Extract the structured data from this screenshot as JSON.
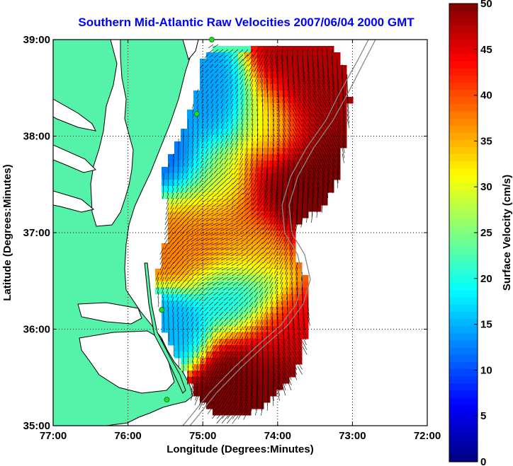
{
  "title": "Southern Mid-Atlantic Raw Velocities 2007/06/04 2000 GMT",
  "map": {
    "xlabel": "Longitude (Degrees:Minutes)",
    "ylabel": "Latitude (Degrees:Minutes)",
    "lon_range": [
      -77,
      -72
    ],
    "lat_range": [
      35,
      39
    ],
    "x_ticks": [
      "77:00",
      "76:00",
      "75:00",
      "74:00",
      "73:00",
      "72:00"
    ],
    "y_ticks": [
      "35:00",
      "36:00",
      "37:00",
      "38:00",
      "39:00"
    ],
    "grid": "dotted",
    "land_color": "#55f2a9",
    "coastline_color": "#000000",
    "vector_color": "#000000",
    "station_color": "#22dd22",
    "station_markers": [
      {
        "lon": -74.88,
        "lat": 39.0
      },
      {
        "lon": -75.08,
        "lat": 38.23
      },
      {
        "lon": -75.55,
        "lat": 36.2
      },
      {
        "lon": -75.48,
        "lat": 35.27
      }
    ]
  },
  "colorbar": {
    "label": "Surface Velocity (cm/s)",
    "min": 0,
    "max": 50,
    "ticks": [
      "0",
      "5",
      "10",
      "15",
      "20",
      "25",
      "30",
      "35",
      "40",
      "45",
      "50"
    ],
    "colormap": "jet"
  }
}
